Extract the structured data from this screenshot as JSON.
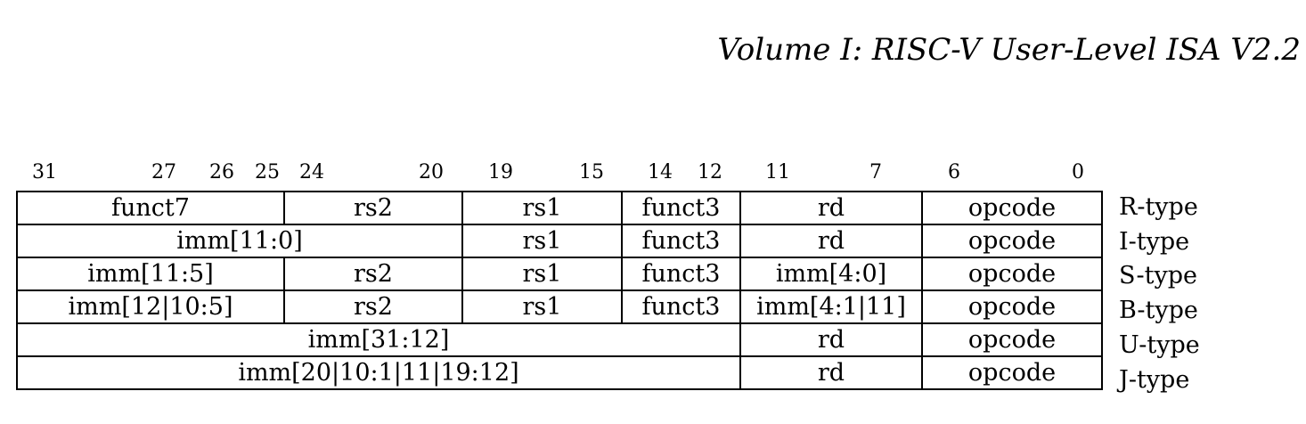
{
  "header": {
    "title": "Volume I: RISC-V User-Level ISA V2.2"
  },
  "bit_positions": [
    "31",
    "27",
    "26",
    "25",
    "24",
    "20",
    "19",
    "15",
    "14",
    "12",
    "11",
    "7",
    "6",
    "0"
  ],
  "formats": [
    {
      "type": "R-type",
      "fields": [
        "funct7",
        "rs2",
        "rs1",
        "funct3",
        "rd",
        "opcode"
      ]
    },
    {
      "type": "I-type",
      "fields": [
        "imm[11:0]",
        "rs1",
        "funct3",
        "rd",
        "opcode"
      ]
    },
    {
      "type": "S-type",
      "fields": [
        "imm[11:5]",
        "rs2",
        "rs1",
        "funct3",
        "imm[4:0]",
        "opcode"
      ]
    },
    {
      "type": "B-type",
      "fields": [
        "imm[12|10:5]",
        "rs2",
        "rs1",
        "funct3",
        "imm[4:1|11]",
        "opcode"
      ]
    },
    {
      "type": "U-type",
      "fields": [
        "imm[31:12]",
        "rd",
        "opcode"
      ]
    },
    {
      "type": "J-type",
      "fields": [
        "imm[20|10:1|11|19:12]",
        "rd",
        "opcode"
      ]
    }
  ]
}
